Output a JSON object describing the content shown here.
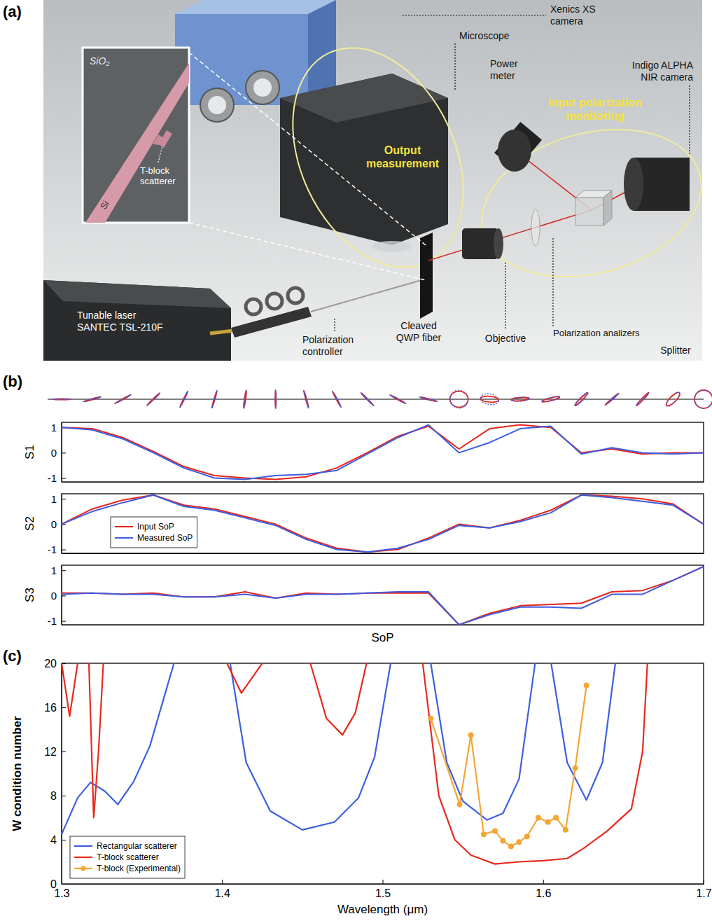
{
  "figure": {
    "panel_labels": [
      "(a)",
      "(b)",
      "(c)"
    ]
  },
  "diagram": {
    "labels": {
      "substrate": [
        "SiO₂"
      ],
      "core": [
        "Si"
      ],
      "scatterer": [
        "T-block",
        "scatterer"
      ],
      "microscope": [
        "Microscope"
      ],
      "xenics": [
        "Xenics XS",
        "camera"
      ],
      "power_meter": [
        "Power",
        "meter"
      ],
      "indigo": [
        "Indigo ALPHA",
        "NIR camera"
      ],
      "output": [
        "Output",
        "measurement"
      ],
      "input": [
        "Input polarization",
        "monitoring"
      ],
      "laser": [
        "Tunable laser",
        "SANTEC TSL-210F"
      ],
      "controller": [
        "Polarization",
        "controller"
      ],
      "fiber": [
        "Cleaved",
        "QWP fiber"
      ],
      "objective": [
        "Objective"
      ],
      "analyzers": [
        "Polarization analizers"
      ],
      "splitter": [
        "Splitter"
      ]
    }
  },
  "chart_data": [
    {
      "type": "line",
      "y_label": "S1",
      "x": [
        0,
        1,
        2,
        3,
        4,
        5,
        6,
        7,
        8,
        9,
        10,
        11,
        12,
        13,
        14,
        15,
        16,
        17,
        18,
        19,
        20,
        21
      ],
      "xlim": [
        0,
        21
      ],
      "ylim": [
        -1.15,
        1.2
      ],
      "yticks": [
        -1,
        0,
        1
      ],
      "tick_labels": "y",
      "series": [
        {
          "color": "#e8241c",
          "values": [
            1.0,
            0.95,
            0.6,
            0.05,
            -0.55,
            -0.9,
            -1.0,
            -1.05,
            -0.95,
            -0.6,
            0.0,
            0.65,
            1.05,
            0.15,
            0.95,
            1.1,
            1.0,
            0.0,
            0.15,
            -0.05,
            0.0,
            0.0
          ]
        },
        {
          "color": "#3e5ce0",
          "values": [
            1.0,
            0.9,
            0.55,
            0.0,
            -0.6,
            -1.0,
            -1.05,
            -0.9,
            -0.85,
            -0.7,
            -0.05,
            0.6,
            1.1,
            0.0,
            0.4,
            0.95,
            1.05,
            -0.05,
            0.2,
            0.0,
            -0.05,
            0.0
          ]
        }
      ]
    },
    {
      "type": "line",
      "y_label": "S2",
      "x": [
        0,
        1,
        2,
        3,
        4,
        5,
        6,
        7,
        8,
        9,
        10,
        11,
        12,
        13,
        14,
        15,
        16,
        17,
        18,
        19,
        20,
        21
      ],
      "xlim": [
        0,
        21
      ],
      "ylim": [
        -1.15,
        1.2
      ],
      "yticks": [
        -1,
        0,
        1
      ],
      "tick_labels": "y",
      "legend": "lower left",
      "series": [
        {
          "name": "Input SoP",
          "color": "#e8241c",
          "values": [
            0.0,
            0.6,
            0.95,
            1.15,
            0.75,
            0.6,
            0.3,
            0.0,
            -0.55,
            -0.95,
            -1.1,
            -1.0,
            -0.55,
            0.0,
            -0.15,
            0.15,
            0.55,
            1.15,
            1.1,
            1.0,
            0.8,
            0.0
          ]
        },
        {
          "name": "Measured SoP",
          "color": "#3e5ce0",
          "values": [
            0.0,
            0.5,
            0.85,
            1.15,
            0.7,
            0.55,
            0.25,
            -0.05,
            -0.6,
            -1.0,
            -1.1,
            -0.95,
            -0.6,
            -0.05,
            -0.15,
            0.1,
            0.45,
            1.15,
            1.05,
            0.9,
            0.75,
            0.0
          ]
        }
      ]
    },
    {
      "type": "line",
      "y_label": "S3",
      "x_label": "SoP",
      "x": [
        0,
        1,
        2,
        3,
        4,
        5,
        6,
        7,
        8,
        9,
        10,
        11,
        12,
        13,
        14,
        15,
        16,
        17,
        18,
        19,
        20,
        21
      ],
      "xlim": [
        0,
        21
      ],
      "ylim": [
        -1.15,
        1.2
      ],
      "yticks": [
        -1,
        0,
        1
      ],
      "tick_labels": "y",
      "series": [
        {
          "color": "#e8241c",
          "values": [
            0.1,
            0.1,
            0.05,
            0.1,
            -0.05,
            -0.05,
            0.15,
            -0.1,
            0.1,
            0.05,
            0.1,
            0.1,
            0.1,
            -1.15,
            -0.7,
            -0.4,
            -0.35,
            -0.3,
            0.15,
            0.2,
            0.6,
            1.15
          ]
        },
        {
          "color": "#3e5ce0",
          "values": [
            0.05,
            0.1,
            0.05,
            0.05,
            -0.05,
            -0.05,
            0.05,
            -0.1,
            0.05,
            0.05,
            0.1,
            0.15,
            0.15,
            -1.15,
            -0.75,
            -0.45,
            -0.45,
            -0.5,
            0.05,
            0.05,
            0.6,
            1.15
          ]
        }
      ]
    },
    {
      "type": "line",
      "x_label": "Wavelength (μm)",
      "y_label": "W condition number",
      "xlim": [
        1.3,
        1.7
      ],
      "xticks": [
        1.3,
        1.4,
        1.5,
        1.6,
        1.7
      ],
      "ylim": [
        0,
        20
      ],
      "yticks": [
        0,
        4,
        8,
        12,
        16,
        20
      ],
      "legend": "lower left",
      "series": [
        {
          "name": "Rectangular scatterer",
          "color": "#3d5fe0",
          "x": [
            1.3,
            1.31,
            1.318,
            1.327,
            1.335,
            1.345,
            1.355,
            1.363,
            1.37,
            1.388,
            1.405,
            1.415,
            1.43,
            1.45,
            1.47,
            1.485,
            1.495,
            1.505,
            1.518,
            1.53,
            1.54,
            1.55,
            1.565,
            1.575,
            1.585,
            1.595,
            1.6,
            1.605,
            1.615,
            1.627,
            1.637,
            1.645
          ],
          "values": [
            4.5,
            7.8,
            9.2,
            8.4,
            7.2,
            9.3,
            12.5,
            16.5,
            20,
            null,
            20,
            11,
            6.6,
            4.9,
            5.6,
            7.8,
            11.5,
            20,
            null,
            20,
            11,
            7.5,
            5.8,
            6.4,
            9.5,
            20,
            null,
            20,
            11,
            7.6,
            11,
            20
          ]
        },
        {
          "name": "T-block scatterer",
          "color": "#e82a1e",
          "x": [
            1.3,
            1.305,
            1.31,
            1.313,
            1.317,
            1.32,
            1.323,
            1.326,
            1.36,
            1.403,
            1.412,
            1.425,
            1.44,
            1.455,
            1.465,
            1.475,
            1.483,
            1.49,
            1.505,
            1.525,
            1.535,
            1.545,
            1.555,
            1.57,
            1.585,
            1.6,
            1.615,
            1.625,
            1.64,
            1.655,
            1.662,
            1.665
          ],
          "values": [
            20,
            15.2,
            20,
            null,
            20,
            6.0,
            12,
            20,
            null,
            20,
            17.3,
            20,
            null,
            20,
            15,
            13.5,
            15.5,
            20,
            null,
            20,
            8,
            4,
            2.6,
            1.8,
            2.0,
            2.1,
            2.3,
            3.2,
            4.8,
            6.8,
            12,
            20
          ]
        },
        {
          "name": "T-block (Experimental)",
          "color": "#f5a532",
          "marker": "circle",
          "x": [
            1.53,
            1.548,
            1.555,
            1.563,
            1.57,
            1.575,
            1.58,
            1.585,
            1.59,
            1.597,
            1.603,
            1.608,
            1.614,
            1.62,
            1.627
          ],
          "values": [
            15,
            7.2,
            13.5,
            4.5,
            4.8,
            3.9,
            3.4,
            3.8,
            4.3,
            6.0,
            5.6,
            6.0,
            4.9,
            10.5,
            18
          ]
        }
      ]
    }
  ]
}
